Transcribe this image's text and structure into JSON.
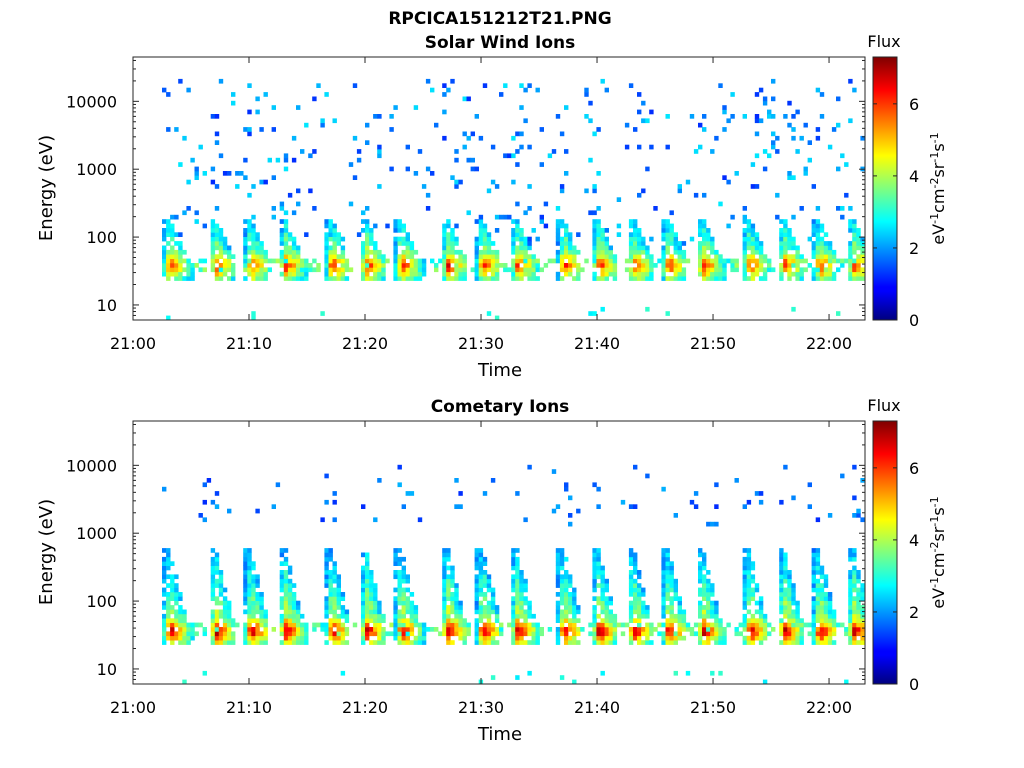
{
  "figure": {
    "title": "RPCICA151212T21.PNG"
  },
  "chart_data": [
    {
      "type": "heatmap",
      "title": "Solar Wind Ions",
      "xlabel": "Time",
      "ylabel": "Energy (eV)",
      "x_range": [
        "21:00",
        "22:03"
      ],
      "x_ticks": [
        "21:00",
        "21:10",
        "21:20",
        "21:30",
        "21:40",
        "21:50",
        "22:00"
      ],
      "ylim": [
        6,
        45000
      ],
      "y_scale": "log",
      "y_ticks": [
        10,
        100,
        1000,
        10000
      ],
      "y_tick_labels": [
        "10",
        "100",
        "1000",
        "10000"
      ],
      "colorbar": {
        "label": "Flux",
        "unit_label": "eV-1cm-2sr-1s-1",
        "range": [
          0,
          7.3
        ],
        "ticks": [
          0,
          2,
          4,
          6
        ],
        "colormap": "jet"
      },
      "grid": false,
      "bursts": {
        "times": [
          "21:03",
          "21:07",
          "21:10",
          "21:13",
          "21:17",
          "21:20",
          "21:23",
          "21:27",
          "21:30",
          "21:33",
          "21:37",
          "21:40",
          "21:43",
          "21:46",
          "21:49",
          "21:53",
          "21:56",
          "21:59",
          "22:02"
        ],
        "peak_energy_ev": 38,
        "peak_flux": 6.4,
        "typical_upper_energy_ev": 150
      },
      "background": {
        "energy_range_ev": [
          70,
          20000
        ],
        "flux_range": [
          1.2,
          2.6
        ]
      }
    },
    {
      "type": "heatmap",
      "title": "Cometary Ions",
      "xlabel": "Time",
      "ylabel": "Energy (eV)",
      "x_range": [
        "21:00",
        "22:03"
      ],
      "x_ticks": [
        "21:00",
        "21:10",
        "21:20",
        "21:30",
        "21:40",
        "21:50",
        "22:00"
      ],
      "ylim": [
        6,
        45000
      ],
      "y_scale": "log",
      "y_ticks": [
        10,
        100,
        1000,
        10000
      ],
      "y_tick_labels": [
        "10",
        "100",
        "1000",
        "10000"
      ],
      "colorbar": {
        "label": "Flux",
        "unit_label": "eV-1cm-2sr-1s-1",
        "range": [
          0,
          7.3
        ],
        "ticks": [
          0,
          2,
          4,
          6
        ],
        "colormap": "jet"
      },
      "grid": false,
      "bursts": {
        "times": [
          "21:03",
          "21:07",
          "21:10",
          "21:13",
          "21:17",
          "21:20",
          "21:23",
          "21:27",
          "21:30",
          "21:33",
          "21:37",
          "21:40",
          "21:43",
          "21:46",
          "21:49",
          "21:53",
          "21:56",
          "21:59",
          "22:02"
        ],
        "peak_energy_ev": 36,
        "peak_flux": 7.2,
        "typical_upper_energy_ev": 450
      },
      "background": {
        "energy_range_ev": [
          1200,
          10000
        ],
        "flux_range": [
          1.2,
          2.2
        ]
      }
    }
  ]
}
